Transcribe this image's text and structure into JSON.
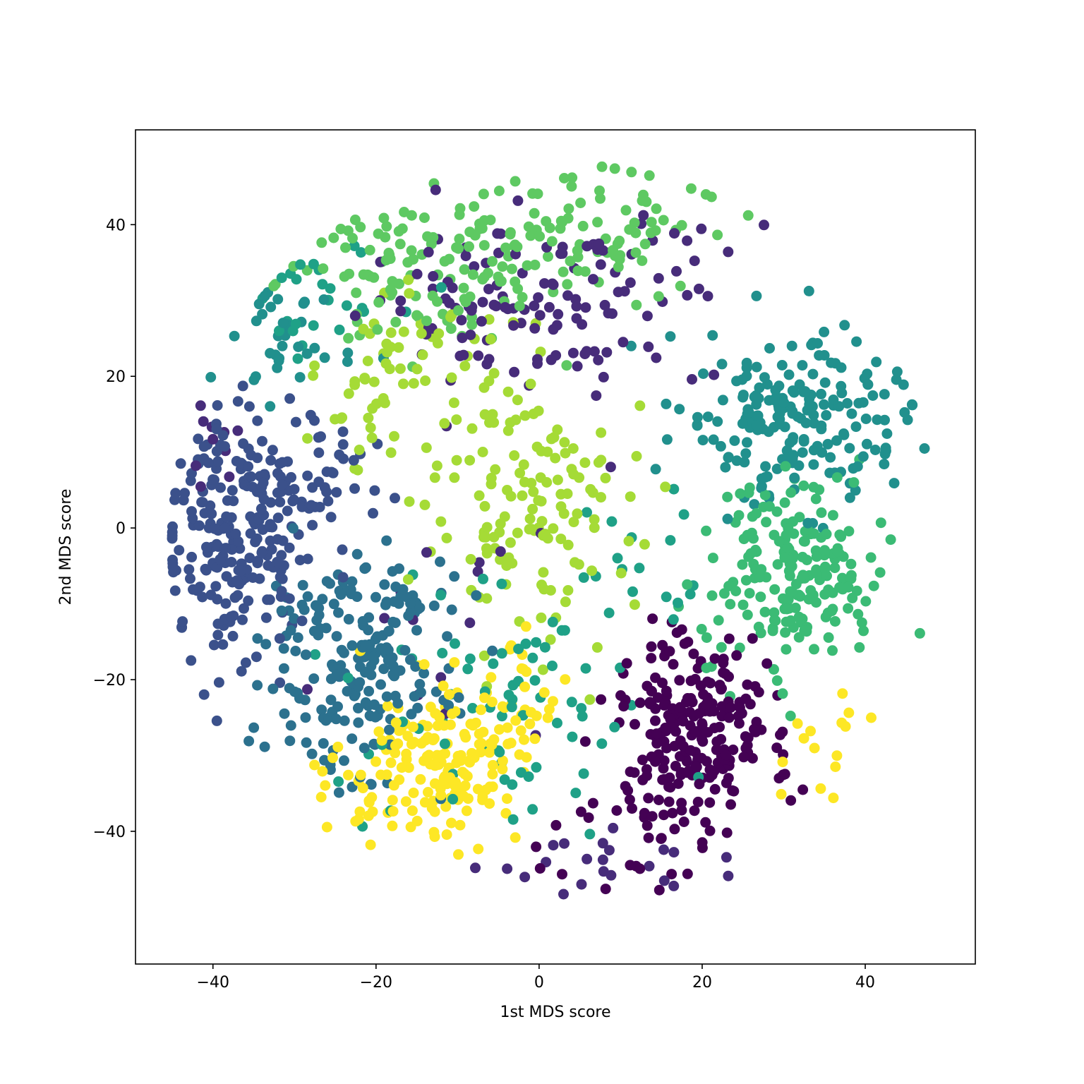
{
  "chart_data": {
    "type": "scatter",
    "title": "",
    "xlabel": "1st MDS score",
    "ylabel": "2nd MDS score",
    "xlim": [
      -49.5,
      53.5
    ],
    "ylim": [
      -57.5,
      52.5
    ],
    "xticks": [
      -40,
      -20,
      0,
      20,
      40
    ],
    "yticks": [
      -40,
      -20,
      0,
      20,
      40
    ],
    "xtick_labels": [
      "−40",
      "−20",
      "0",
      "20",
      "40"
    ],
    "ytick_labels": [
      "−40",
      "−20",
      "0",
      "20",
      "40"
    ],
    "grid": false,
    "legend": "none",
    "colormap": "viridis",
    "series": [
      {
        "color": "#440154",
        "clusters": [
          {
            "center": [
              19,
              -27
            ],
            "spread": [
              5,
              6
            ],
            "n": 230
          },
          {
            "center": [
              12,
              -42
            ],
            "spread": [
              6,
              4
            ],
            "n": 25
          }
        ]
      },
      {
        "color": "#472c7a",
        "clusters": [
          {
            "center": [
              -2,
              30
            ],
            "spread": [
              9,
              6
            ],
            "n": 110
          },
          {
            "center": [
              15,
              36
            ],
            "spread": [
              6,
              4
            ],
            "n": 20
          },
          {
            "center": [
              -40,
              12
            ],
            "spread": [
              2,
              3
            ],
            "n": 10
          },
          {
            "center": [
              8,
              -44
            ],
            "spread": [
              8,
              3
            ],
            "n": 22
          },
          {
            "center": [
              -12,
              -10
            ],
            "spread": [
              8,
              10
            ],
            "n": 15
          }
        ]
      },
      {
        "color": "#3b518b",
        "clusters": [
          {
            "center": [
              -37,
              -1
            ],
            "spread": [
              5,
              8
            ],
            "n": 240
          },
          {
            "center": [
              -26,
              6
            ],
            "spread": [
              4,
              5
            ],
            "n": 30
          }
        ]
      },
      {
        "color": "#2c718e",
        "clusters": [
          {
            "center": [
              -22,
              -19
            ],
            "spread": [
              6,
              7
            ],
            "n": 180
          },
          {
            "center": [
              -21,
              -8
            ],
            "spread": [
              6,
              3
            ],
            "n": 30
          }
        ]
      },
      {
        "color": "#21908d",
        "clusters": [
          {
            "center": [
              32,
              15
            ],
            "spread": [
              7,
              6
            ],
            "n": 200
          },
          {
            "center": [
              -31,
              24
            ],
            "spread": [
              4,
              4
            ],
            "n": 35
          }
        ]
      },
      {
        "color": "#1fa187",
        "clusters": [
          {
            "center": [
              -5,
              -23
            ],
            "spread": [
              9,
              9
            ],
            "n": 75
          },
          {
            "center": [
              -26,
              30
            ],
            "spread": [
              5,
              4
            ],
            "n": 25
          },
          {
            "center": [
              12,
              -3
            ],
            "spread": [
              5,
              5
            ],
            "n": 15
          }
        ]
      },
      {
        "color": "#3bbb75",
        "clusters": [
          {
            "center": [
              31,
              -6
            ],
            "spread": [
              5,
              6
            ],
            "n": 200
          }
        ]
      },
      {
        "color": "#5ec962",
        "clusters": [
          {
            "center": [
              -14,
              34
            ],
            "spread": [
              8,
              5
            ],
            "n": 110
          },
          {
            "center": [
              5,
              38
            ],
            "spread": [
              9,
              5
            ],
            "n": 90
          }
        ]
      },
      {
        "color": "#a5db36",
        "clusters": [
          {
            "center": [
              -1,
              3
            ],
            "spread": [
              6,
              9
            ],
            "n": 140
          },
          {
            "center": [
              -19,
              14
            ],
            "spread": [
              4,
              6
            ],
            "n": 25
          },
          {
            "center": [
              -16,
              23
            ],
            "spread": [
              5,
              5
            ],
            "n": 40
          }
        ]
      },
      {
        "color": "#fde725",
        "clusters": [
          {
            "center": [
              -11,
              -31
            ],
            "spread": [
              5,
              5
            ],
            "n": 170
          },
          {
            "center": [
              -3,
              -22
            ],
            "spread": [
              3,
              4
            ],
            "n": 25
          },
          {
            "center": [
              34,
              -28
            ],
            "spread": [
              3,
              3
            ],
            "n": 15
          },
          {
            "center": [
              -23,
              -35
            ],
            "spread": [
              3,
              3
            ],
            "n": 15
          }
        ]
      }
    ]
  }
}
